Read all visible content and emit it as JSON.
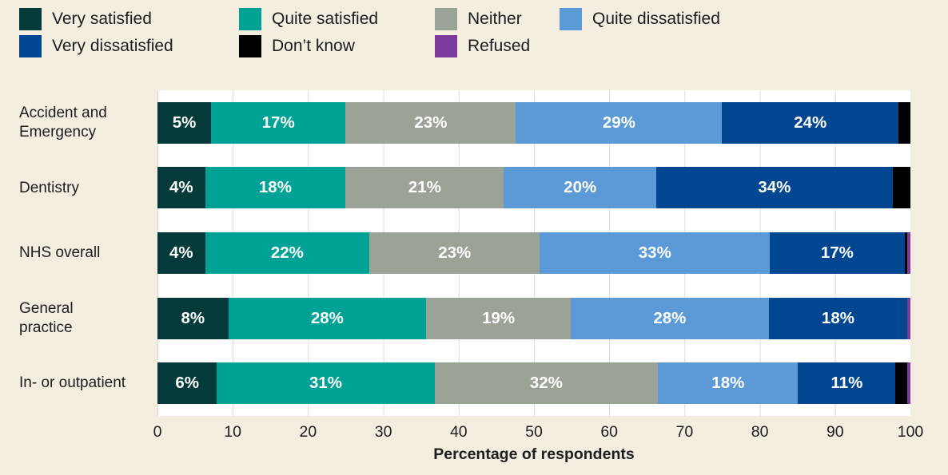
{
  "colors": {
    "background": "#f4eee1",
    "plot_background": "#ffffff",
    "gridline": "#dcdcdc",
    "text": "#1d1d1b",
    "bar_label_text": "#ffffff"
  },
  "legend": {
    "items": [
      {
        "label": "Very satisfied",
        "color": "#043b3a"
      },
      {
        "label": "Quite satisfied",
        "color": "#00a296"
      },
      {
        "label": "Neither",
        "color": "#9aa396"
      },
      {
        "label": "Quite dissatisfied",
        "color": "#5b9ad7"
      },
      {
        "label": "Very dissatisfied",
        "color": "#014690"
      },
      {
        "label": "Don’t know",
        "color": "#000000"
      },
      {
        "label": "Refused",
        "color": "#7c3a9b"
      }
    ],
    "row1_count": 4
  },
  "chart_data": {
    "type": "bar",
    "orientation": "horizontal",
    "stacked": true,
    "categories": [
      "Accident and Emergency",
      "Dentistry",
      "NHS overall",
      "General practice",
      "In- or outpatient"
    ],
    "series": [
      {
        "name": "Very satisfied",
        "color": "#043b3a",
        "show_labels": true,
        "values": [
          5,
          4,
          4,
          8,
          6
        ]
      },
      {
        "name": "Quite satisfied",
        "color": "#00a296",
        "show_labels": true,
        "values": [
          17,
          18,
          22,
          28,
          31
        ]
      },
      {
        "name": "Neither",
        "color": "#9aa396",
        "show_labels": true,
        "values": [
          23,
          21,
          23,
          19,
          32
        ]
      },
      {
        "name": "Quite dissatisfied",
        "color": "#5b9ad7",
        "show_labels": true,
        "values": [
          29,
          20,
          33,
          28,
          18
        ]
      },
      {
        "name": "Very dissatisfied",
        "color": "#014690",
        "show_labels": true,
        "values": [
          24,
          34,
          17,
          18,
          11
        ]
      },
      {
        "name": "Don’t know",
        "color": "#000000",
        "show_labels": false,
        "values": [
          2,
          3,
          0.5,
          0,
          2
        ]
      },
      {
        "name": "Refused",
        "color": "#7c3a9b",
        "show_labels": false,
        "values": [
          0,
          0,
          0.5,
          0.5,
          0.5
        ]
      }
    ],
    "value_suffix": "%",
    "xlabel": "Percentage of respondents",
    "x_ticks": [
      0,
      10,
      20,
      30,
      40,
      50,
      60,
      70,
      80,
      90,
      100
    ],
    "xlim": [
      0,
      100
    ],
    "grid": true,
    "legend_position": "top"
  }
}
